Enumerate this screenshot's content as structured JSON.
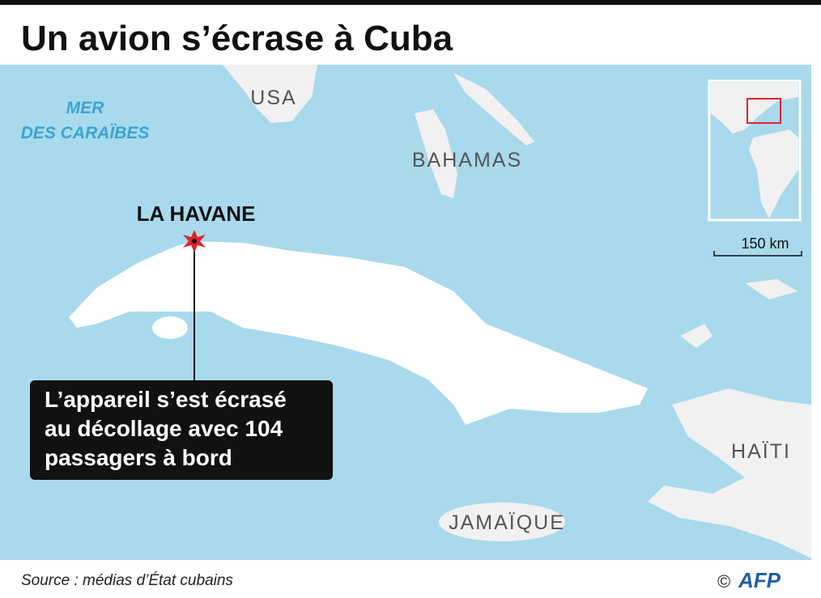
{
  "header": {
    "title": "Un avion s’écrase à Cuba"
  },
  "map": {
    "sea_label": [
      "MER",
      "DES CARAÏBES"
    ],
    "countries": [
      "USA",
      "BAHAMAS",
      "HAÏTI",
      "JAMAÏQUE"
    ],
    "city": "LA HAVANE",
    "callout": [
      "L’appareil s’est écrasé",
      "au décollage avec 104",
      "passagers à bord"
    ],
    "scale": "150 km"
  },
  "footer": {
    "source": "Source : médias d’État cubains",
    "copyright": "©",
    "logo": "AFP"
  }
}
